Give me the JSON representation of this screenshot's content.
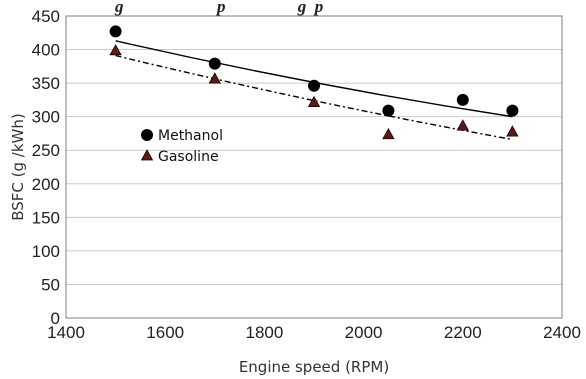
{
  "chart_data": {
    "type": "scatter",
    "title": "",
    "caption_fragment": "g                      p                 g  p",
    "xlabel": "Engine speed (RPM)",
    "ylabel": "BSFC (g /kWh)",
    "xlim": [
      1400,
      2400
    ],
    "ylim": [
      0,
      450
    ],
    "xticks": [
      1400,
      1600,
      1800,
      2000,
      2200,
      2400
    ],
    "yticks": [
      0,
      50,
      100,
      150,
      200,
      250,
      300,
      350,
      400,
      450
    ],
    "grid": "horizontal",
    "legend_position": "center-left",
    "series": [
      {
        "name": "Methanol",
        "marker": "circle",
        "color": "#000000",
        "trendline": "solid",
        "trend": [
          [
            1500,
            413
          ],
          [
            1900,
            351
          ],
          [
            2300,
            300
          ]
        ],
        "x": [
          1500,
          1700,
          1900,
          2050,
          2200,
          2300
        ],
        "y": [
          427,
          379,
          346,
          309,
          325,
          309
        ]
      },
      {
        "name": "Gasoline",
        "marker": "triangle",
        "color": "#5a1a1a",
        "trendline": "dashed",
        "trend": [
          [
            1500,
            391
          ],
          [
            1900,
            324
          ],
          [
            2300,
            266
          ]
        ],
        "x": [
          1500,
          1700,
          1900,
          2050,
          2200,
          2300
        ],
        "y": [
          398,
          356,
          321,
          273,
          286,
          277
        ]
      }
    ]
  }
}
